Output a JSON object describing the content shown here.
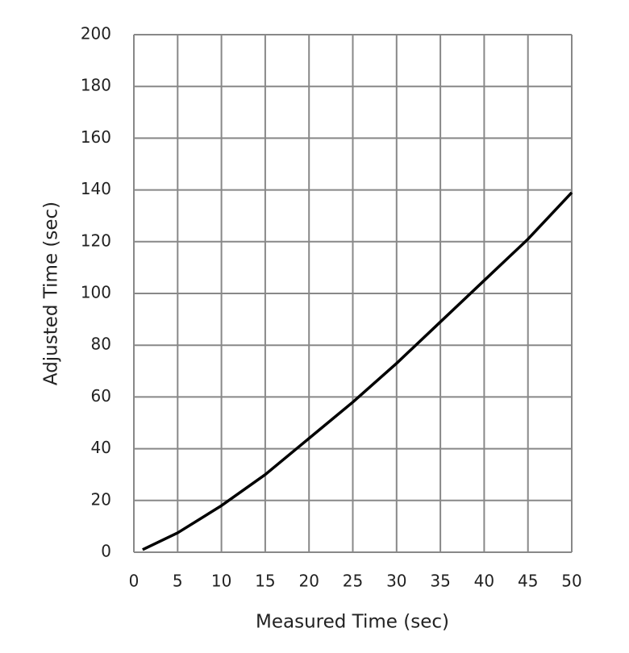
{
  "chart_data": {
    "type": "line",
    "x_label": "Measured Time (sec)",
    "y_label": "Adjusted Time (sec)",
    "series": [
      {
        "name": "Adjusted Time",
        "color": "#000000",
        "x": [
          1,
          5,
          10,
          15,
          20,
          25,
          30,
          35,
          40,
          45,
          50
        ],
        "values": [
          1,
          7.5,
          18,
          30,
          44,
          58,
          73,
          89,
          105,
          121,
          139
        ]
      }
    ],
    "xlim": [
      0,
      50
    ],
    "xticks": [
      0,
      5,
      10,
      15,
      20,
      25,
      30,
      35,
      40,
      45,
      50
    ],
    "ylim": [
      0,
      200
    ],
    "yticks": [
      0,
      20,
      40,
      60,
      80,
      100,
      120,
      140,
      160,
      180,
      200
    ],
    "grid": true
  }
}
